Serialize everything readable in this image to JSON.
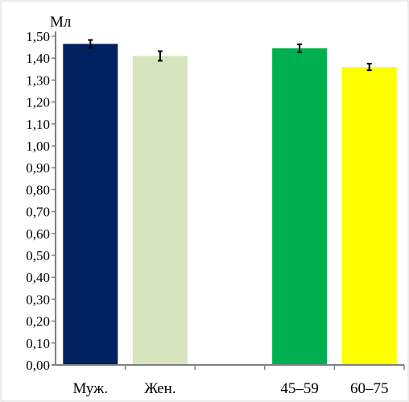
{
  "chart_data": {
    "type": "bar",
    "ylabel": "Мл",
    "ylim": [
      0,
      1.5
    ],
    "ytick_step": 0.1,
    "ytick_labels": [
      "0,00",
      "0,10",
      "0,20",
      "0,30",
      "0,40",
      "0,50",
      "0,60",
      "0,70",
      "0,80",
      "0,90",
      "1,00",
      "1,10",
      "1,20",
      "1,30",
      "1,40",
      "1,50"
    ],
    "grid": false,
    "slots": 5,
    "categories": [
      {
        "label": "Муж.",
        "value": 1.465,
        "error": 0.018,
        "color": "#002060",
        "slot": 0
      },
      {
        "label": "Жен.",
        "value": 1.41,
        "error": 0.022,
        "color": "#d7e4bd",
        "slot": 1
      },
      {
        "label": "45–59",
        "value": 1.445,
        "error": 0.018,
        "color": "#00b050",
        "slot": 3
      },
      {
        "label": "60–75",
        "value": 1.36,
        "error": 0.015,
        "color": "#ffff00",
        "slot": 4
      }
    ],
    "colors": {
      "axis": "#808080",
      "error_bar": "#000000",
      "frame": "#d9d9d9"
    }
  }
}
